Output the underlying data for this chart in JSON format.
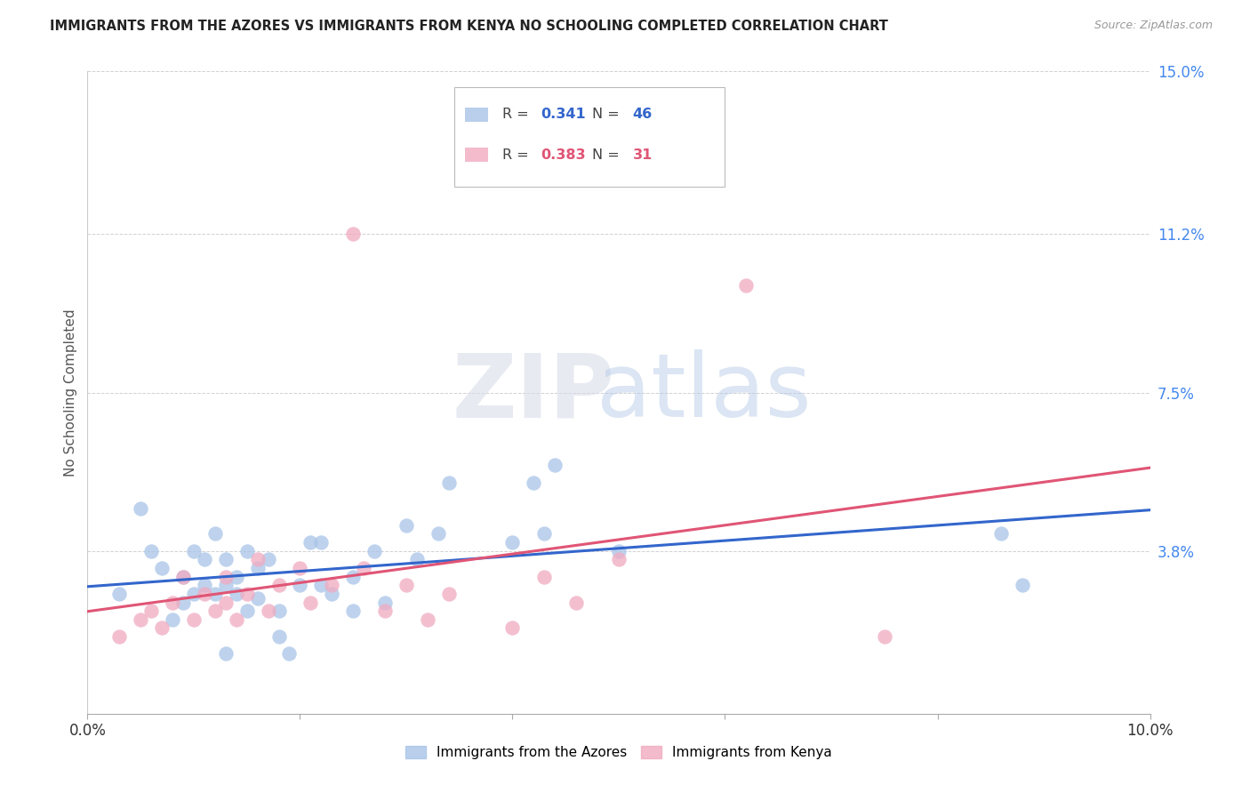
{
  "title": "IMMIGRANTS FROM THE AZORES VS IMMIGRANTS FROM KENYA NO SCHOOLING COMPLETED CORRELATION CHART",
  "source": "Source: ZipAtlas.com",
  "ylabel": "No Schooling Completed",
  "xlim": [
    0.0,
    0.1
  ],
  "ylim": [
    0.0,
    0.15
  ],
  "ytick_vals": [
    0.038,
    0.075,
    0.112,
    0.15
  ],
  "ytick_labels": [
    "3.8%",
    "7.5%",
    "11.2%",
    "15.0%"
  ],
  "legend_blue_r": "0.341",
  "legend_blue_n": "46",
  "legend_pink_r": "0.383",
  "legend_pink_n": "31",
  "blue_color": "#a8c4e8",
  "pink_color": "#f0aac0",
  "blue_line_color": "#3366cc",
  "pink_line_color": "#e05575",
  "blue_label": "Immigrants from the Azores",
  "pink_label": "Immigrants from Kenya",
  "watermark_zip": "ZIP",
  "watermark_atlas": "atlas",
  "background_color": "#ffffff",
  "grid_color": "#cccccc",
  "blue_x": [
    0.003,
    0.005,
    0.006,
    0.007,
    0.008,
    0.009,
    0.009,
    0.01,
    0.01,
    0.011,
    0.011,
    0.012,
    0.012,
    0.013,
    0.013,
    0.013,
    0.014,
    0.014,
    0.015,
    0.015,
    0.016,
    0.016,
    0.017,
    0.018,
    0.018,
    0.019,
    0.02,
    0.021,
    0.022,
    0.022,
    0.023,
    0.025,
    0.025,
    0.027,
    0.028,
    0.03,
    0.031,
    0.033,
    0.034,
    0.04,
    0.042,
    0.043,
    0.044,
    0.05,
    0.086,
    0.088
  ],
  "blue_y": [
    0.028,
    0.048,
    0.038,
    0.034,
    0.022,
    0.026,
    0.032,
    0.028,
    0.038,
    0.03,
    0.036,
    0.028,
    0.042,
    0.03,
    0.036,
    0.014,
    0.028,
    0.032,
    0.024,
    0.038,
    0.027,
    0.034,
    0.036,
    0.018,
    0.024,
    0.014,
    0.03,
    0.04,
    0.03,
    0.04,
    0.028,
    0.032,
    0.024,
    0.038,
    0.026,
    0.044,
    0.036,
    0.042,
    0.054,
    0.04,
    0.054,
    0.042,
    0.058,
    0.038,
    0.042,
    0.03
  ],
  "pink_x": [
    0.003,
    0.005,
    0.006,
    0.007,
    0.008,
    0.009,
    0.01,
    0.011,
    0.012,
    0.013,
    0.013,
    0.014,
    0.015,
    0.016,
    0.017,
    0.018,
    0.02,
    0.021,
    0.023,
    0.025,
    0.026,
    0.028,
    0.03,
    0.032,
    0.034,
    0.04,
    0.043,
    0.046,
    0.05,
    0.062,
    0.075
  ],
  "pink_y": [
    0.018,
    0.022,
    0.024,
    0.02,
    0.026,
    0.032,
    0.022,
    0.028,
    0.024,
    0.026,
    0.032,
    0.022,
    0.028,
    0.036,
    0.024,
    0.03,
    0.034,
    0.026,
    0.03,
    0.112,
    0.034,
    0.024,
    0.03,
    0.022,
    0.028,
    0.02,
    0.032,
    0.026,
    0.036,
    0.1,
    0.018
  ]
}
